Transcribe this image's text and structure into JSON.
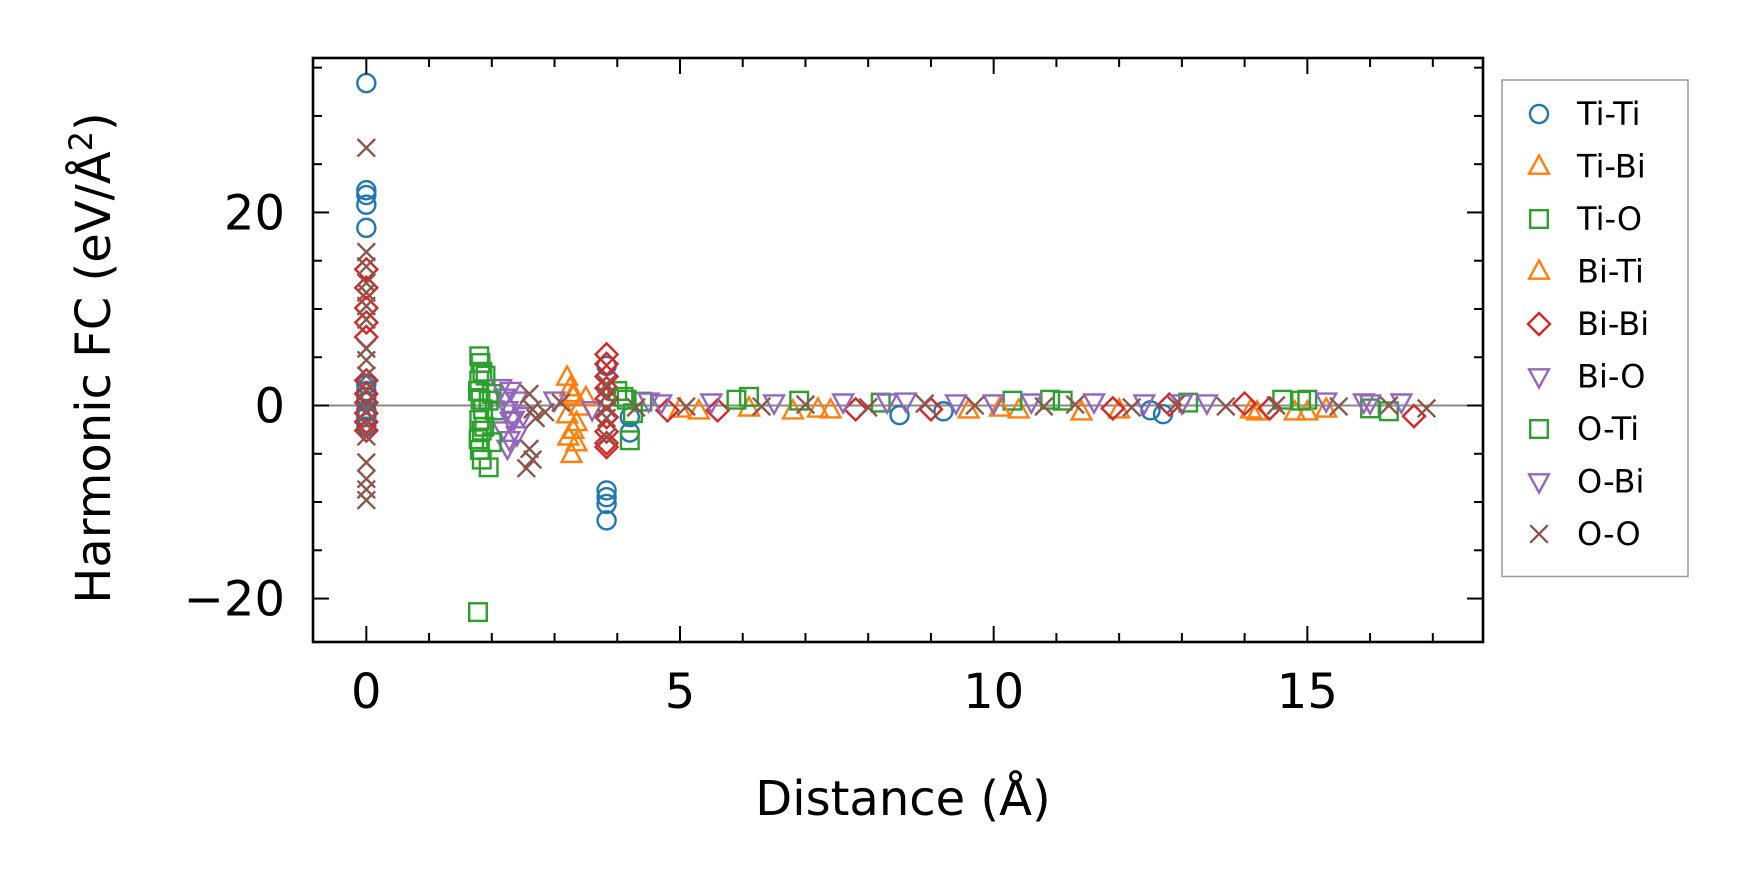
{
  "chart_data": {
    "type": "scatter",
    "title": "",
    "xlabel": "Distance (Å)",
    "ylabel_main": "Harmonic FC (eV/Å",
    "ylabel_sup": "2",
    "ylabel_close": ")",
    "xlim": [
      -0.85,
      17.8
    ],
    "ylim": [
      -24.5,
      36
    ],
    "xticks": [
      0,
      5,
      10,
      15
    ],
    "xtick_labels": [
      "0",
      "5",
      "10",
      "15"
    ],
    "yticks": [
      -20,
      0,
      20
    ],
    "ytick_labels": [
      "−20",
      "0",
      "20"
    ],
    "zero_line": true,
    "legend_position": "right",
    "series": [
      {
        "name": "Ti-Ti",
        "marker": "circle",
        "color": "#1f77b4",
        "points": [
          [
            0,
            33.4
          ],
          [
            0,
            22.3
          ],
          [
            0,
            21.8
          ],
          [
            0,
            20.8
          ],
          [
            0,
            18.4
          ],
          [
            0,
            2.2
          ],
          [
            0,
            1.5
          ],
          [
            0,
            0.9
          ],
          [
            0,
            0.4
          ],
          [
            0,
            -0.5
          ],
          [
            0,
            -1.2
          ],
          [
            0,
            -2.2
          ],
          [
            3.83,
            4.1
          ],
          [
            3.83,
            -8.8
          ],
          [
            3.83,
            -9.5
          ],
          [
            3.83,
            -10.2
          ],
          [
            3.83,
            -11.9
          ],
          [
            4.2,
            -1.2
          ],
          [
            4.2,
            -2.8
          ],
          [
            8.5,
            -1.0
          ],
          [
            9.2,
            -0.6
          ],
          [
            12.5,
            -0.5
          ],
          [
            12.7,
            -0.9
          ]
        ]
      },
      {
        "name": "Ti-Bi",
        "marker": "triangle-up",
        "color": "#ff7f0e",
        "points": [
          [
            3.2,
            2.9
          ],
          [
            3.25,
            1.8
          ],
          [
            3.3,
            0.9
          ],
          [
            3.2,
            -1.0
          ],
          [
            3.3,
            -2.6
          ],
          [
            3.35,
            -3.9
          ],
          [
            3.27,
            -5.1
          ],
          [
            3.4,
            -0.2
          ],
          [
            3.5,
            0.8
          ],
          [
            5.3,
            -0.6
          ],
          [
            6.1,
            -0.3
          ],
          [
            6.8,
            -0.6
          ],
          [
            7.4,
            -0.5
          ],
          [
            9.6,
            -0.5
          ],
          [
            10.4,
            -0.5
          ],
          [
            11.4,
            -0.7
          ],
          [
            14.2,
            -0.7
          ],
          [
            14.8,
            -0.7
          ],
          [
            15.3,
            -0.4
          ]
        ]
      },
      {
        "name": "Ti-O",
        "marker": "square",
        "color": "#2ca02c",
        "points": [
          [
            1.8,
            5.1
          ],
          [
            1.82,
            4.4
          ],
          [
            1.85,
            3.5
          ],
          [
            1.8,
            2.6
          ],
          [
            1.78,
            1.5
          ],
          [
            1.82,
            0.6
          ],
          [
            1.86,
            -0.4
          ],
          [
            1.8,
            -1.5
          ],
          [
            1.84,
            -2.6
          ],
          [
            1.79,
            -3.5
          ],
          [
            1.81,
            -4.6
          ],
          [
            1.84,
            -5.6
          ],
          [
            1.95,
            -6.4
          ],
          [
            1.78,
            -21.4
          ],
          [
            2.0,
            1.2
          ],
          [
            2.05,
            -0.5
          ],
          [
            4.0,
            1.5
          ],
          [
            4.15,
            0.6
          ],
          [
            4.25,
            -0.8
          ],
          [
            4.2,
            -3.6
          ],
          [
            4.4,
            0.4
          ],
          [
            6.1,
            0.9
          ],
          [
            6.9,
            0.5
          ],
          [
            8.2,
            0.3
          ],
          [
            10.3,
            0.5
          ],
          [
            10.9,
            0.6
          ],
          [
            13.1,
            0.3
          ],
          [
            14.6,
            0.6
          ],
          [
            15.0,
            0.6
          ],
          [
            16.0,
            -0.3
          ],
          [
            16.3,
            -0.6
          ]
        ]
      },
      {
        "name": "Bi-Ti",
        "marker": "triangle-up",
        "color": "#ff7f0e",
        "points": [
          [
            3.3,
            1.2
          ],
          [
            3.35,
            -1.8
          ],
          [
            3.22,
            -3.3
          ],
          [
            5.0,
            -0.4
          ],
          [
            7.2,
            -0.4
          ],
          [
            10.1,
            -0.3
          ],
          [
            12.0,
            -0.5
          ],
          [
            14.1,
            -0.5
          ],
          [
            15.0,
            -0.7
          ]
        ]
      },
      {
        "name": "Bi-Bi",
        "marker": "diamond",
        "color": "#d62728",
        "points": [
          [
            0,
            14.1
          ],
          [
            0,
            12.2
          ],
          [
            0,
            10.1
          ],
          [
            0,
            8.6
          ],
          [
            0,
            7.1
          ],
          [
            0,
            2.6
          ],
          [
            0,
            1.2
          ],
          [
            0,
            0.3
          ],
          [
            0,
            -0.8
          ],
          [
            0,
            -1.7
          ],
          [
            0,
            -2.6
          ],
          [
            3.83,
            5.3
          ],
          [
            3.83,
            4.3
          ],
          [
            3.83,
            3.0
          ],
          [
            3.83,
            1.8
          ],
          [
            3.83,
            0.7
          ],
          [
            3.83,
            -1.2
          ],
          [
            3.83,
            -2.7
          ],
          [
            3.83,
            -3.9
          ],
          [
            3.83,
            -4.3
          ],
          [
            4.8,
            -0.5
          ],
          [
            5.6,
            -0.5
          ],
          [
            7.8,
            -0.4
          ],
          [
            9.0,
            -0.4
          ],
          [
            11.9,
            -0.3
          ],
          [
            12.8,
            0.1
          ],
          [
            14.0,
            0.2
          ],
          [
            14.4,
            -0.3
          ],
          [
            16.7,
            -1.1
          ]
        ]
      },
      {
        "name": "Bi-O",
        "marker": "triangle-down",
        "color": "#9467bd",
        "points": [
          [
            2.15,
            1.9
          ],
          [
            2.2,
            0.9
          ],
          [
            2.25,
            -0.4
          ],
          [
            2.3,
            -1.5
          ],
          [
            2.18,
            -2.5
          ],
          [
            2.28,
            -3.5
          ],
          [
            2.25,
            -4.4
          ],
          [
            2.4,
            0.6
          ],
          [
            2.5,
            -1.0
          ],
          [
            3.0,
            0.6
          ],
          [
            3.6,
            -0.4
          ],
          [
            4.5,
            0.5
          ],
          [
            5.5,
            0.4
          ],
          [
            6.5,
            0.3
          ],
          [
            7.6,
            0.4
          ],
          [
            8.6,
            0.5
          ],
          [
            9.4,
            0.3
          ],
          [
            10.6,
            0.4
          ],
          [
            11.6,
            0.4
          ],
          [
            12.4,
            0.3
          ],
          [
            13.4,
            0.3
          ],
          [
            15.3,
            0.5
          ],
          [
            15.9,
            0.4
          ],
          [
            16.5,
            0.4
          ]
        ]
      },
      {
        "name": "O-Ti",
        "marker": "square",
        "color": "#2ca02c",
        "points": [
          [
            1.9,
            3.1
          ],
          [
            1.95,
            0.5
          ],
          [
            1.88,
            -2.2
          ],
          [
            2.0,
            -3.8
          ],
          [
            4.1,
            0.9
          ],
          [
            5.9,
            0.6
          ],
          [
            11.1,
            0.5
          ],
          [
            14.9,
            0.5
          ]
        ]
      },
      {
        "name": "O-Bi",
        "marker": "triangle-down",
        "color": "#9467bd",
        "points": [
          [
            2.3,
            1.6
          ],
          [
            2.35,
            -1.4
          ],
          [
            2.4,
            -3.0
          ],
          [
            4.7,
            0.3
          ],
          [
            8.3,
            0.4
          ],
          [
            10.0,
            0.3
          ],
          [
            13.0,
            0.3
          ],
          [
            16.0,
            0.3
          ]
        ]
      },
      {
        "name": "O-O",
        "marker": "x",
        "color": "#8c564b",
        "points": [
          [
            0,
            26.7
          ],
          [
            0,
            15.9
          ],
          [
            0,
            14.4
          ],
          [
            0,
            12.7
          ],
          [
            0,
            11.7
          ],
          [
            0,
            10.3
          ],
          [
            0,
            8.9
          ],
          [
            0,
            5.9
          ],
          [
            0,
            4.7
          ],
          [
            0,
            3.1
          ],
          [
            0,
            1.6
          ],
          [
            0,
            0.3
          ],
          [
            0,
            -0.7
          ],
          [
            0,
            -1.9
          ],
          [
            0,
            -3.2
          ],
          [
            0,
            -5.9
          ],
          [
            0,
            -7.6
          ],
          [
            0,
            -8.7
          ],
          [
            0,
            -9.8
          ],
          [
            2.6,
            1.2
          ],
          [
            2.65,
            -0.4
          ],
          [
            2.7,
            -1.3
          ],
          [
            2.6,
            -4.5
          ],
          [
            2.65,
            -5.6
          ],
          [
            2.55,
            -6.5
          ],
          [
            2.85,
            -0.7
          ],
          [
            3.1,
            0.3
          ],
          [
            3.83,
            2.2
          ],
          [
            3.83,
            1.0
          ],
          [
            3.83,
            -0.3
          ],
          [
            3.83,
            -1.3
          ],
          [
            3.83,
            -3.3
          ],
          [
            4.3,
            -0.2
          ],
          [
            5.1,
            -0.1
          ],
          [
            6.3,
            -0.1
          ],
          [
            7.0,
            0.1
          ],
          [
            8.0,
            -0.2
          ],
          [
            8.9,
            0.2
          ],
          [
            9.7,
            0.0
          ],
          [
            10.8,
            -0.1
          ],
          [
            11.3,
            0.1
          ],
          [
            12.2,
            -0.2
          ],
          [
            12.9,
            0.1
          ],
          [
            13.7,
            -0.1
          ],
          [
            14.5,
            0.0
          ],
          [
            15.5,
            -0.1
          ],
          [
            16.3,
            0.0
          ],
          [
            16.9,
            -0.3
          ]
        ]
      }
    ]
  }
}
